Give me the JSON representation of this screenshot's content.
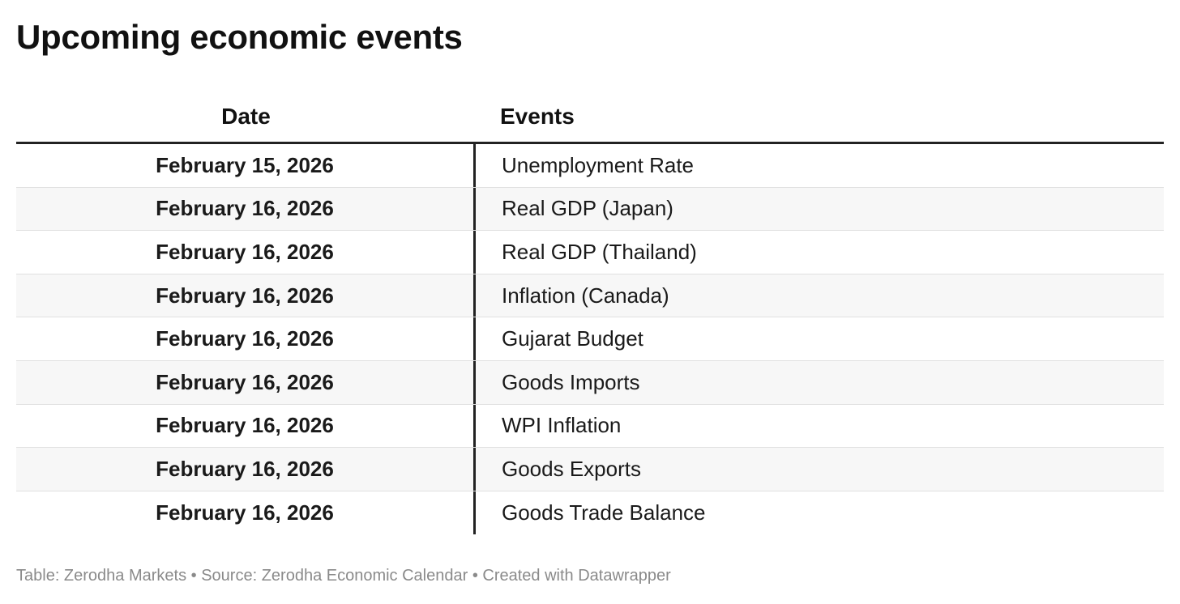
{
  "title": "Upcoming economic events",
  "chart_data": {
    "type": "table",
    "title": "Upcoming economic events",
    "columns": [
      "Date",
      "Events"
    ],
    "rows": [
      {
        "date": "February 15, 2026",
        "event": "Unemployment Rate"
      },
      {
        "date": "February 16, 2026",
        "event": "Real GDP (Japan)"
      },
      {
        "date": "February 16, 2026",
        "event": "Real GDP (Thailand)"
      },
      {
        "date": "February 16, 2026",
        "event": "Inflation (Canada)"
      },
      {
        "date": "February 16, 2026",
        "event": "Gujarat Budget"
      },
      {
        "date": "February 16, 2026",
        "event": "Goods Imports"
      },
      {
        "date": "February 16, 2026",
        "event": "WPI Inflation"
      },
      {
        "date": "February 16, 2026",
        "event": "Goods Exports"
      },
      {
        "date": "February 16, 2026",
        "event": "Goods Trade Balance"
      }
    ]
  },
  "footer": "Table: Zerodha Markets • Source: Zerodha Economic Calendar • Created with Datawrapper"
}
